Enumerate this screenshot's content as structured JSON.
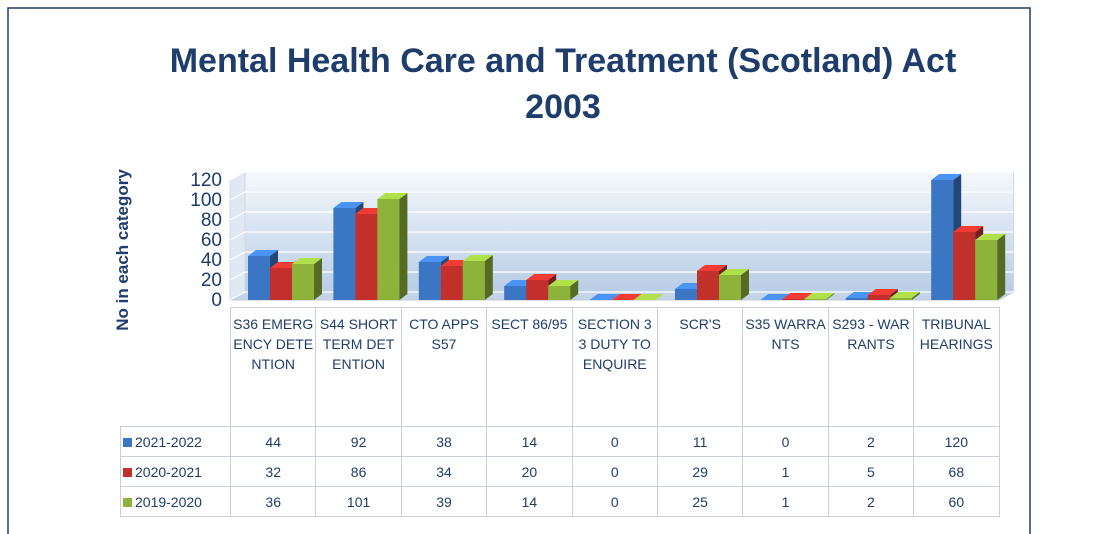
{
  "chart_data": {
    "type": "bar3d",
    "title": "Mental Health Care and Treatment (Scotland) Act 2003",
    "y_label": "No in each category",
    "categories": [
      "S36 EMERGENCY DETENTION",
      "S44 SHORT TERM DETENTION",
      "CTO APPS S57",
      "SECT 86/95",
      "SECTION 33 DUTY TO ENQUIRE",
      "SCR'S",
      "S35 WARRANTS",
      "S293 - WARRANTS",
      "TRIBUNAL HEARINGS"
    ],
    "series": [
      {
        "name": "2021-2022",
        "color": "#3b76c4",
        "values": [
          44,
          92,
          38,
          14,
          0,
          11,
          0,
          2,
          120
        ]
      },
      {
        "name": "2020-2021",
        "color": "#c1302b",
        "values": [
          32,
          86,
          34,
          20,
          0,
          29,
          1,
          5,
          68
        ]
      },
      {
        "name": "2019-2020",
        "color": "#8db33b",
        "values": [
          36,
          101,
          39,
          14,
          0,
          25,
          1,
          2,
          60
        ]
      }
    ],
    "ylim": [
      0,
      120
    ],
    "yticks": [
      0,
      20,
      40,
      60,
      80,
      100,
      120
    ],
    "grid": true
  }
}
